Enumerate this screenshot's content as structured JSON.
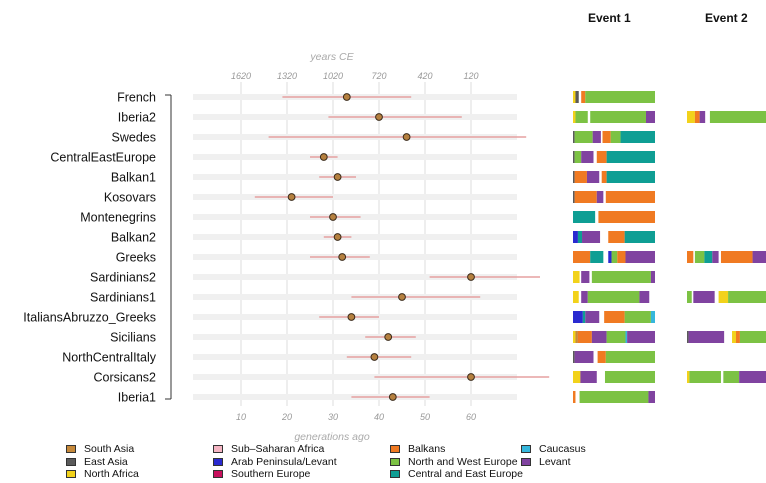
{
  "chart_data": {
    "type": "scatter",
    "top_axis_label": "years CE",
    "top_ticks": [
      "1620",
      "1320",
      "1020",
      "720",
      "420",
      "120"
    ],
    "xlabel": "generations ago",
    "x_ticks": [
      10,
      20,
      30,
      40,
      50,
      60
    ],
    "xlim": [
      0,
      70
    ],
    "event_titles": [
      "Event 1",
      "Event 2"
    ],
    "populations": [
      "French",
      "Iberia2",
      "Swedes",
      "CentralEastEurope",
      "Balkan1",
      "Kosovars",
      "Montenegrins",
      "Balkan2",
      "Greeks",
      "Sardinians2",
      "Sardinians1",
      "ItaliansAbruzzo_Greeks",
      "Sicilians",
      "NorthCentralItaly",
      "Corsicans2",
      "Iberia1"
    ],
    "estimates": [
      {
        "pop": "French",
        "gen": 33,
        "low": 19,
        "high": 47
      },
      {
        "pop": "Iberia2",
        "gen": 40,
        "low": 29,
        "high": 58
      },
      {
        "pop": "Swedes",
        "gen": 46,
        "low": 16,
        "high": 72
      },
      {
        "pop": "CentralEastEurope",
        "gen": 28,
        "low": 25,
        "high": 31
      },
      {
        "pop": "Balkan1",
        "gen": 31,
        "low": 27,
        "high": 35
      },
      {
        "pop": "Kosovars",
        "gen": 21,
        "low": 13,
        "high": 30
      },
      {
        "pop": "Montenegrins",
        "gen": 30,
        "low": 25,
        "high": 36
      },
      {
        "pop": "Balkan2",
        "gen": 31,
        "low": 28,
        "high": 34
      },
      {
        "pop": "Greeks",
        "gen": 32,
        "low": 25,
        "high": 38
      },
      {
        "pop": "Sardinians2",
        "gen": 60,
        "low": 51,
        "high": 75
      },
      {
        "pop": "Sardinians1",
        "gen": 45,
        "low": 34,
        "high": 62
      },
      {
        "pop": "ItaliansAbruzzo_Greeks",
        "gen": 34,
        "low": 27,
        "high": 40
      },
      {
        "pop": "Sicilians",
        "gen": 42,
        "low": 37,
        "high": 48
      },
      {
        "pop": "NorthCentralItaly",
        "gen": 39,
        "low": 33,
        "high": 47
      },
      {
        "pop": "Corsicans2",
        "gen": 60,
        "low": 39,
        "high": 77
      },
      {
        "pop": "Iberia1",
        "gen": 43,
        "low": 34,
        "high": 51
      }
    ],
    "event1": [
      [
        [
          "north_africa",
          0.03
        ],
        [
          "east_asia",
          0.04
        ],
        [
          "gap",
          0.03
        ],
        [
          "balkans",
          0.05
        ],
        [
          "north_west_europe",
          0.85
        ]
      ],
      [
        [
          "north_africa",
          0.03
        ],
        [
          "north_west_europe",
          0.15
        ],
        [
          "gap",
          0.03
        ],
        [
          "north_west_europe",
          0.68
        ],
        [
          "levant",
          0.11
        ]
      ],
      [
        [
          "east_asia",
          0.02
        ],
        [
          "north_west_europe",
          0.22
        ],
        [
          "levant",
          0.1
        ],
        [
          "gap",
          0.02
        ],
        [
          "balkans",
          0.1
        ],
        [
          "north_west_europe",
          0.12
        ],
        [
          "central_east_europe",
          0.42
        ]
      ],
      [
        [
          "east_asia",
          0.02
        ],
        [
          "north_west_europe",
          0.08
        ],
        [
          "levant",
          0.15
        ],
        [
          "gap",
          0.04
        ],
        [
          "balkans",
          0.12
        ],
        [
          "central_east_europe",
          0.59
        ]
      ],
      [
        [
          "east_asia",
          0.02
        ],
        [
          "balkans",
          0.15
        ],
        [
          "levant",
          0.15
        ],
        [
          "gap",
          0.03
        ],
        [
          "balkans",
          0.06
        ],
        [
          "central_east_europe",
          0.59
        ]
      ],
      [
        [
          "east_asia",
          0.02
        ],
        [
          "balkans",
          0.27
        ],
        [
          "levant",
          0.08
        ],
        [
          "gap",
          0.03
        ],
        [
          "balkans",
          0.6
        ]
      ],
      [
        [
          "central_east_europe",
          0.27
        ],
        [
          "gap",
          0.04
        ],
        [
          "balkans",
          0.69
        ]
      ],
      [
        [
          "arab_levant",
          0.06
        ],
        [
          "central_east_europe",
          0.05
        ],
        [
          "levant",
          0.22
        ],
        [
          "gap",
          0.1
        ],
        [
          "balkans",
          0.2
        ],
        [
          "central_east_europe",
          0.37
        ]
      ],
      [
        [
          "balkans",
          0.21
        ],
        [
          "central_east_europe",
          0.16
        ],
        [
          "gap",
          0.06
        ],
        [
          "arab_levant",
          0.04
        ],
        [
          "north_west_europe",
          0.07
        ],
        [
          "balkans",
          0.1
        ],
        [
          "levant",
          0.36
        ]
      ],
      [
        [
          "north_africa",
          0.08
        ],
        [
          "gap",
          0.02
        ],
        [
          "levant",
          0.1
        ],
        [
          "gap",
          0.03
        ],
        [
          "north_west_europe",
          0.72
        ],
        [
          "levant",
          0.05
        ]
      ],
      [
        [
          "north_africa",
          0.07
        ],
        [
          "gap",
          0.03
        ],
        [
          "levant",
          0.08
        ],
        [
          "north_west_europe",
          0.63
        ],
        [
          "levant",
          0.12
        ],
        [
          "gap",
          0.07
        ]
      ],
      [
        [
          "arab_levant",
          0.12
        ],
        [
          "central_east_europe",
          0.03
        ],
        [
          "levant",
          0.17
        ],
        [
          "gap",
          0.06
        ],
        [
          "balkans",
          0.25
        ],
        [
          "north_west_europe",
          0.32
        ],
        [
          "caucasus",
          0.05
        ]
      ],
      [
        [
          "north_africa",
          0.03
        ],
        [
          "south_asia",
          0.03
        ],
        [
          "balkans",
          0.17
        ],
        [
          "levant",
          0.18
        ],
        [
          "north_west_europe",
          0.23
        ],
        [
          "caucasus",
          0.02
        ],
        [
          "levant",
          0.34
        ]
      ],
      [
        [
          "east_asia",
          0.02
        ],
        [
          "levant",
          0.23
        ],
        [
          "gap",
          0.05
        ],
        [
          "balkans",
          0.1
        ],
        [
          "north_west_europe",
          0.6
        ]
      ],
      [
        [
          "north_africa",
          0.09
        ],
        [
          "levant",
          0.2
        ],
        [
          "gap",
          0.1
        ],
        [
          "north_west_europe",
          0.61
        ]
      ],
      [
        [
          "balkans",
          0.03
        ],
        [
          "gap",
          0.05
        ],
        [
          "north_west_europe",
          0.84
        ],
        [
          "levant",
          0.08
        ]
      ]
    ],
    "event2": [
      [],
      [
        [
          "north_africa",
          0.1
        ],
        [
          "balkans",
          0.06
        ],
        [
          "levant",
          0.07
        ],
        [
          "gap",
          0.06
        ],
        [
          "north_west_europe",
          0.71
        ]
      ],
      [],
      [],
      [],
      [],
      [],
      [],
      [
        [
          "balkans",
          0.08
        ],
        [
          "gap",
          0.02
        ],
        [
          "north_west_europe",
          0.12
        ],
        [
          "central_east_europe",
          0.1
        ],
        [
          "levant",
          0.08
        ],
        [
          "gap",
          0.03
        ],
        [
          "balkans",
          0.4
        ],
        [
          "levant",
          0.17
        ]
      ],
      [],
      [
        [
          "north_west_europe",
          0.06
        ],
        [
          "gap",
          0.02
        ],
        [
          "levant",
          0.27
        ],
        [
          "gap",
          0.05
        ],
        [
          "north_africa",
          0.12
        ],
        [
          "north_west_europe",
          0.48
        ]
      ],
      [],
      [
        [
          "east_asia",
          0.02
        ],
        [
          "levant",
          0.45
        ],
        [
          "gap",
          0.1
        ],
        [
          "north_africa",
          0.05
        ],
        [
          "balkans",
          0.05
        ],
        [
          "north_west_europe",
          0.33
        ]
      ],
      [],
      [
        [
          "north_africa",
          0.03
        ],
        [
          "north_west_europe",
          0.4
        ],
        [
          "gap",
          0.03
        ],
        [
          "north_west_europe",
          0.2
        ],
        [
          "levant",
          0.34
        ]
      ],
      []
    ],
    "colors": {
      "south_asia": "#c6893a",
      "east_asia": "#5a5a5a",
      "north_africa": "#f2d21b",
      "sub_saharan_africa": "#f5b5c3",
      "arab_levant": "#2a2ad0",
      "southern_europe": "#c8105d",
      "balkans": "#f07a22",
      "north_west_europe": "#7cc244",
      "central_east_europe": "#0f9e94",
      "caucasus": "#35b7dc",
      "levant": "#8043a0",
      "whisker": "#e6a0a0",
      "point": "#b5803f"
    },
    "legend": [
      {
        "label": "South Asia",
        "color": "south_asia"
      },
      {
        "label": "East Asia",
        "color": "east_asia"
      },
      {
        "label": "North Africa",
        "color": "north_africa"
      },
      {
        "label": "Sub–Saharan Africa",
        "color": "sub_saharan_africa"
      },
      {
        "label": "Arab Peninsula/Levant",
        "color": "arab_levant"
      },
      {
        "label": "Southern Europe",
        "color": "southern_europe"
      },
      {
        "label": "Balkans",
        "color": "balkans"
      },
      {
        "label": "North and West Europe",
        "color": "north_west_europe"
      },
      {
        "label": "Central and East Europe",
        "color": "central_east_europe"
      },
      {
        "label": "Caucasus",
        "color": "caucasus"
      },
      {
        "label": "Levant",
        "color": "levant"
      }
    ]
  }
}
